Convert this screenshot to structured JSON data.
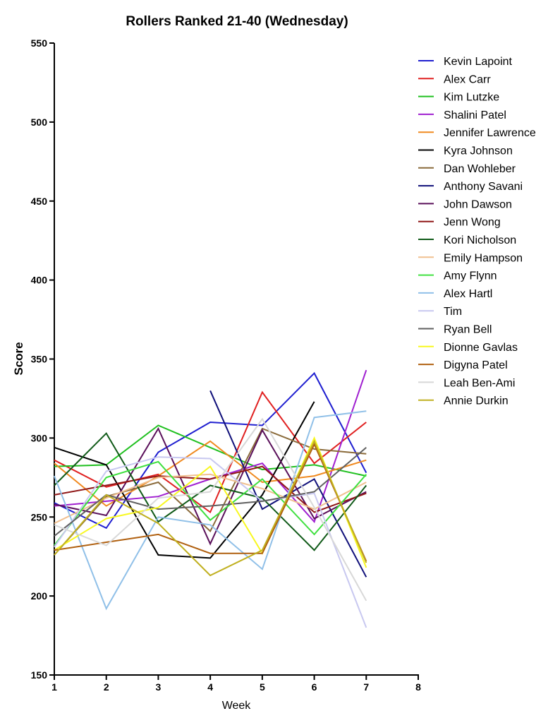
{
  "chart_data": {
    "type": "line",
    "title": "Rollers Ranked 21-40 (Wednesday)",
    "xlabel": "Week",
    "ylabel": "Score",
    "xlim": [
      1,
      8
    ],
    "ylim": [
      150,
      550
    ],
    "xticks": [
      1,
      2,
      3,
      4,
      5,
      6,
      7,
      8
    ],
    "yticks": [
      150,
      200,
      250,
      300,
      350,
      400,
      450,
      500,
      550
    ],
    "grid": false,
    "legend": "right",
    "series": [
      {
        "name": "Kevin Lapoint",
        "color": "#1f1fd0",
        "x": [
          1,
          2,
          3,
          4,
          5,
          6,
          7
        ],
        "y": [
          259,
          243,
          291,
          310,
          308,
          341,
          278
        ]
      },
      {
        "name": "Alex Carr",
        "color": "#e02020",
        "x": [
          1,
          2,
          3,
          4,
          5,
          6,
          7
        ],
        "y": [
          286,
          269,
          277,
          253,
          329,
          284,
          310
        ]
      },
      {
        "name": "Kim Lutzke",
        "color": "#20c020",
        "x": [
          1,
          2,
          3,
          4,
          5,
          6,
          7
        ],
        "y": [
          282,
          283,
          308,
          294,
          280,
          283,
          276
        ]
      },
      {
        "name": "Shalini Patel",
        "color": "#a020d0",
        "x": [
          1,
          2,
          3,
          4,
          5,
          6,
          7
        ],
        "y": [
          257,
          260,
          263,
          274,
          284,
          247,
          343
        ]
      },
      {
        "name": "Jennifer Lawrence",
        "color": "#f08a20",
        "x": [
          1,
          2,
          3,
          4,
          5,
          6,
          7
        ],
        "y": [
          284,
          257,
          276,
          298,
          272,
          276,
          286
        ]
      },
      {
        "name": "Kyra Johnson",
        "color": "#000000",
        "x": [
          1,
          2,
          3,
          4,
          5,
          6
        ],
        "y": [
          294,
          283,
          226,
          224,
          264,
          323
        ]
      },
      {
        "name": "Dan Wohleber",
        "color": "#8a6a3a",
        "x": [
          1,
          2,
          3,
          4,
          5,
          6,
          7
        ],
        "y": [
          226,
          263,
          272,
          241,
          306,
          293,
          290
        ]
      },
      {
        "name": "Anthony Savani",
        "color": "#10107a",
        "x": [
          4,
          5,
          6,
          7
        ],
        "y": [
          330,
          255,
          274,
          212
        ]
      },
      {
        "name": "John Dawson",
        "color": "#5a105a",
        "x": [
          1,
          2,
          3,
          4,
          5,
          6,
          7
        ],
        "y": [
          258,
          251,
          306,
          233,
          305,
          249,
          266
        ]
      },
      {
        "name": "Jenn Wong",
        "color": "#901818",
        "x": [
          1,
          2,
          3,
          4,
          5,
          6,
          7
        ],
        "y": [
          264,
          270,
          276,
          274,
          282,
          253,
          265
        ]
      },
      {
        "name": "Kori Nicholson",
        "color": "#105a18",
        "x": [
          1,
          2,
          3,
          4,
          5,
          6,
          7
        ],
        "y": [
          270,
          303,
          247,
          270,
          262,
          229,
          270
        ]
      },
      {
        "name": "Emily Hampson",
        "color": "#f0c090",
        "x": [
          1,
          2,
          3,
          4,
          5,
          6,
          7
        ],
        "y": [
          246,
          262,
          275,
          277,
          268,
          255,
          272
        ]
      },
      {
        "name": "Amy Flynn",
        "color": "#40e040",
        "x": [
          1,
          2,
          3,
          4,
          5,
          6,
          7
        ],
        "y": [
          232,
          275,
          285,
          248,
          274,
          239,
          277
        ]
      },
      {
        "name": "Alex Hartl",
        "color": "#90c0e8",
        "x": [
          1,
          2,
          3,
          4,
          5,
          6,
          7
        ],
        "y": [
          276,
          192,
          250,
          245,
          217,
          313,
          317
        ]
      },
      {
        "name": "Tim",
        "color": "#c8c8f0",
        "x": [
          1,
          2,
          3,
          4,
          5,
          6,
          7
        ],
        "y": [
          231,
          279,
          288,
          287,
          260,
          265,
          180
        ]
      },
      {
        "name": "Ryan Bell",
        "color": "#606060",
        "x": [
          1,
          2,
          3,
          4,
          5,
          6,
          7
        ],
        "y": [
          238,
          264,
          255,
          257,
          260,
          266,
          294
        ]
      },
      {
        "name": "Dionne Gavlas",
        "color": "#f8f820",
        "x": [
          1,
          2,
          3,
          4,
          5,
          6,
          7
        ],
        "y": [
          229,
          249,
          256,
          282,
          227,
          300,
          218
        ]
      },
      {
        "name": "Digyna Patel",
        "color": "#b06010",
        "x": [
          1,
          2,
          3,
          4,
          5,
          6,
          7
        ],
        "y": [
          229,
          234,
          239,
          227,
          227,
          296,
          222
        ]
      },
      {
        "name": "Leah Ben-Ami",
        "color": "#d8d8d8",
        "x": [
          1,
          2,
          3,
          4,
          5,
          6,
          7
        ],
        "y": [
          245,
          232,
          262,
          266,
          312,
          256,
          197
        ]
      },
      {
        "name": "Annie Durkin",
        "color": "#c0b020",
        "x": [
          1,
          2,
          3,
          4,
          5,
          6,
          7
        ],
        "y": [
          226,
          264,
          246,
          213,
          229,
          298,
          221
        ]
      }
    ]
  }
}
